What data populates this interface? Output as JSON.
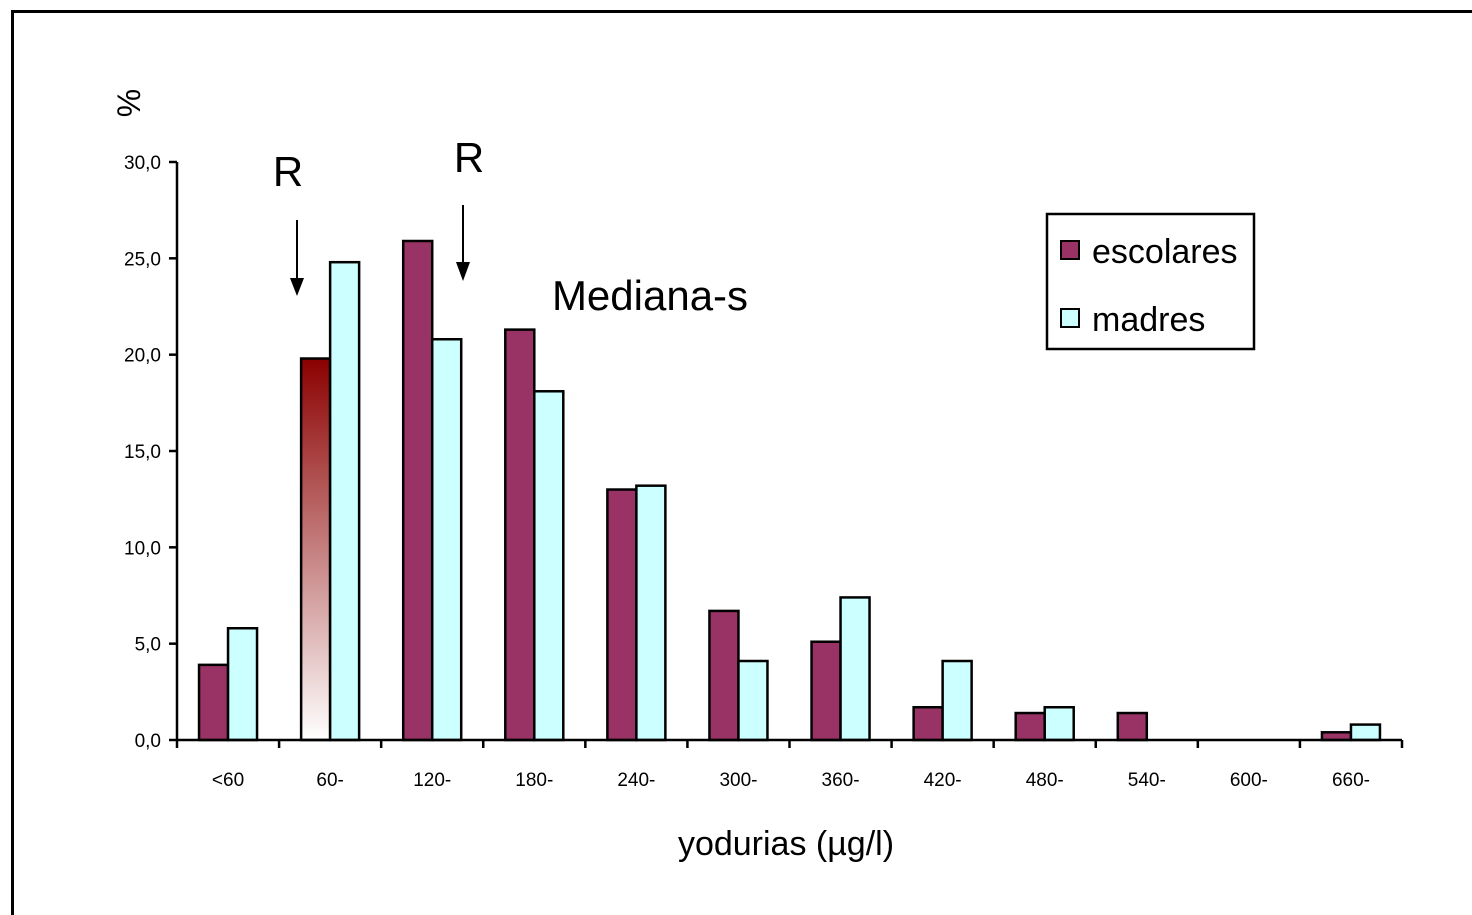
{
  "chart_data": {
    "type": "bar",
    "ylabel": "%",
    "xlabel": "yodurias (µg/l)",
    "ylim": [
      0,
      30
    ],
    "yticks": [
      "0,0",
      "5,0",
      "10,0",
      "15,0",
      "20,0",
      "25,0",
      "30,0"
    ],
    "ytick_values": [
      0,
      5,
      10,
      15,
      20,
      25,
      30
    ],
    "categories": [
      "<60",
      "60-",
      "120-",
      "180-",
      "240-",
      "300-",
      "360-",
      "420-",
      "480-",
      "540-",
      "600-",
      "660-"
    ],
    "series": [
      {
        "name": "escolares",
        "color": "#993366",
        "values": [
          3.9,
          19.8,
          25.9,
          21.3,
          13.0,
          6.7,
          5.1,
          1.7,
          1.4,
          1.4,
          0.0,
          0.4
        ]
      },
      {
        "name": "madres",
        "color": "#ccffff",
        "values": [
          5.8,
          24.8,
          20.8,
          18.1,
          13.2,
          4.1,
          7.4,
          4.1,
          1.7,
          0.0,
          0.0,
          0.8
        ]
      }
    ],
    "highlight": {
      "series": "escolares",
      "category": "60-",
      "gradient": [
        "#8b0000",
        "#ffffff"
      ]
    },
    "legend": {
      "position": "top-right"
    },
    "annotations": [
      {
        "text": "R",
        "category": "60-",
        "arrow": true
      },
      {
        "text": "R",
        "category": "120-",
        "arrow": true
      },
      {
        "text": "Mediana-s",
        "category": "180-"
      }
    ]
  }
}
